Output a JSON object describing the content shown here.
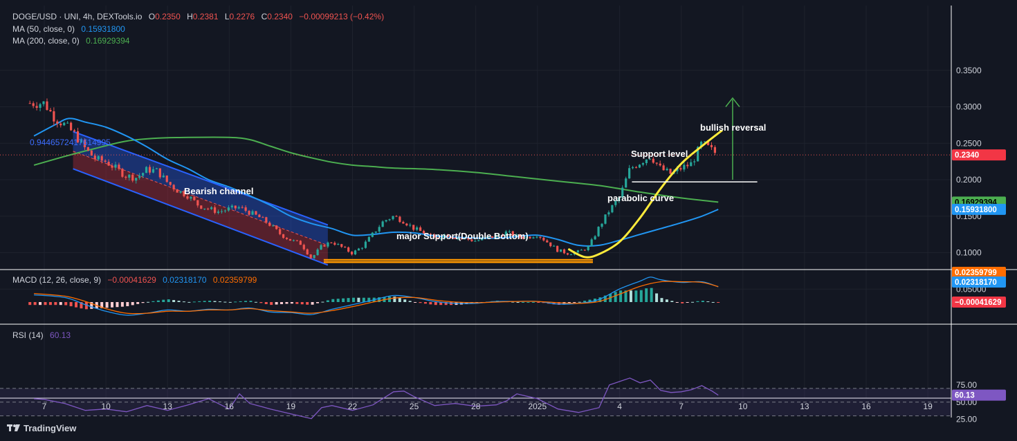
{
  "header": {
    "symbol_line": "DOGE/USD · UNI, 4h, DEXTools.io",
    "o_label": "O",
    "o": "0.2350",
    "h_label": "H",
    "h": "0.2381",
    "l_label": "L",
    "l": "0.2276",
    "c_label": "C",
    "c": "0.2340",
    "change": "−0.00099213 (−0.42%)",
    "ma50_label": "MA (50, close, 0)",
    "ma50_value": "0.15931800",
    "ma200_label": "MA (200, close, 0)",
    "ma200_value": "0.16929394"
  },
  "annotations": {
    "fib": "0.9446572417614995",
    "bearish_channel": "Bearish channel",
    "major_support": "major Support(Double Bottom)",
    "support_level": "Support level",
    "bullish_reversal": "bullish reversal",
    "parabolic_curve": "parabolic curve"
  },
  "price_axis": {
    "ticks": [
      "0.3500",
      "0.3000",
      "0.2500",
      "0.2000",
      "0.1500",
      "0.1000",
      "0.05000"
    ],
    "current": "0.2340",
    "ma200_tag": "0.16929394",
    "ma50_tag": "0.15931800"
  },
  "macd": {
    "label": "MACD (12, 26, close, 9)",
    "hist_value": "−0.00041629",
    "macd_value": "0.02318170",
    "signal_value": "0.02359799",
    "tag_macd": "0.02318170",
    "tag_hist": "−0.00041629",
    "tag_signal": "0.02359799"
  },
  "rsi": {
    "label": "RSI (14)",
    "value": "60.13",
    "ticks": [
      "75.00",
      "50.00",
      "25.00"
    ],
    "tag": "60.13"
  },
  "time_axis": [
    "7",
    "10",
    "13",
    "16",
    "19",
    "22",
    "25",
    "28",
    "2025",
    "4",
    "7",
    "10",
    "13",
    "16",
    "19"
  ],
  "footer": {
    "brand": "TradingView"
  },
  "colors": {
    "background": "#131722",
    "up": "#26a69a",
    "down": "#ef5350",
    "ma50": "#2196f3",
    "ma200": "#4caf50",
    "rsi": "#7e57c2",
    "signal": "#ff6d00",
    "support": "#ff9800",
    "curve": "#ffeb3b",
    "arrow": "#4caf50"
  },
  "chart_data": {
    "type": "candlestick",
    "title": "DOGE/USD · UNI, 4h, DEXTools.io",
    "y_ticks": [
      0.35,
      0.3,
      0.25,
      0.2,
      0.15,
      0.1,
      0.05
    ],
    "last_close": 0.234,
    "ma50_last": 0.159318,
    "ma200_last": 0.16929394,
    "price_path": [
      [
        7,
        0.305
      ],
      [
        7.5,
        0.285
      ],
      [
        8,
        0.275
      ],
      [
        8.5,
        0.262
      ],
      [
        9,
        0.242
      ],
      [
        9.5,
        0.228
      ],
      [
        10,
        0.225
      ],
      [
        10.5,
        0.215
      ],
      [
        11,
        0.205
      ],
      [
        11.5,
        0.203
      ],
      [
        12,
        0.214
      ],
      [
        12.5,
        0.212
      ],
      [
        13,
        0.196
      ],
      [
        13.5,
        0.185
      ],
      [
        14,
        0.178
      ],
      [
        14.5,
        0.165
      ],
      [
        15,
        0.16
      ],
      [
        15.5,
        0.156
      ],
      [
        16,
        0.16
      ],
      [
        16.5,
        0.162
      ],
      [
        17,
        0.155
      ],
      [
        17.5,
        0.148
      ],
      [
        18,
        0.138
      ],
      [
        18.5,
        0.125
      ],
      [
        19,
        0.117
      ],
      [
        19.5,
        0.112
      ],
      [
        20,
        0.092
      ],
      [
        20.5,
        0.109
      ],
      [
        21,
        0.115
      ],
      [
        21.5,
        0.107
      ],
      [
        22,
        0.099
      ],
      [
        22.5,
        0.109
      ],
      [
        23,
        0.126
      ],
      [
        23.5,
        0.143
      ],
      [
        24,
        0.15
      ],
      [
        24.5,
        0.143
      ],
      [
        25,
        0.133
      ],
      [
        25.5,
        0.127
      ],
      [
        26,
        0.119
      ],
      [
        26.5,
        0.125
      ],
      [
        27,
        0.121
      ],
      [
        27.5,
        0.119
      ],
      [
        28,
        0.116
      ],
      [
        28.5,
        0.12
      ],
      [
        29,
        0.123
      ],
      [
        29.5,
        0.128
      ],
      [
        30,
        0.122
      ],
      [
        30.5,
        0.121
      ],
      [
        31,
        0.125
      ],
      [
        31.5,
        0.114
      ],
      [
        32,
        0.103
      ],
      [
        32.5,
        0.099
      ],
      [
        33,
        0.101
      ],
      [
        33.5,
        0.108
      ],
      [
        34,
        0.135
      ],
      [
        34.5,
        0.158
      ],
      [
        35,
        0.176
      ],
      [
        35.5,
        0.215
      ],
      [
        36,
        0.224
      ],
      [
        36.5,
        0.233
      ],
      [
        37,
        0.215
      ],
      [
        37.5,
        0.208
      ],
      [
        38,
        0.216
      ],
      [
        38.5,
        0.222
      ],
      [
        39,
        0.25
      ],
      [
        39.5,
        0.24
      ],
      [
        39.8,
        0.234
      ]
    ],
    "ma50_path": [
      [
        6.5,
        0.26
      ],
      [
        7.5,
        0.275
      ],
      [
        8.2,
        0.284
      ],
      [
        9,
        0.279
      ],
      [
        10,
        0.272
      ],
      [
        11,
        0.26
      ],
      [
        12,
        0.245
      ],
      [
        13,
        0.228
      ],
      [
        14,
        0.215
      ],
      [
        15,
        0.2
      ],
      [
        16,
        0.19
      ],
      [
        17,
        0.178
      ],
      [
        18,
        0.165
      ],
      [
        19,
        0.15
      ],
      [
        20,
        0.14
      ],
      [
        21,
        0.133
      ],
      [
        22,
        0.124
      ],
      [
        23,
        0.125
      ],
      [
        24,
        0.128
      ],
      [
        25,
        0.127
      ],
      [
        26,
        0.123
      ],
      [
        27,
        0.121
      ],
      [
        28,
        0.12
      ],
      [
        29,
        0.12
      ],
      [
        30,
        0.122
      ],
      [
        31,
        0.124
      ],
      [
        32,
        0.118
      ],
      [
        33,
        0.11
      ],
      [
        34,
        0.11
      ],
      [
        35,
        0.117
      ],
      [
        36,
        0.125
      ],
      [
        37,
        0.133
      ],
      [
        38,
        0.141
      ],
      [
        39,
        0.15
      ],
      [
        39.8,
        0.1593
      ]
    ],
    "ma200_path": [
      [
        6.5,
        0.22
      ],
      [
        8,
        0.232
      ],
      [
        9.5,
        0.243
      ],
      [
        11,
        0.253
      ],
      [
        12.5,
        0.257
      ],
      [
        14,
        0.258
      ],
      [
        16,
        0.258
      ],
      [
        17,
        0.255
      ],
      [
        18,
        0.246
      ],
      [
        19,
        0.237
      ],
      [
        20,
        0.23
      ],
      [
        21,
        0.224
      ],
      [
        22,
        0.22
      ],
      [
        23,
        0.218
      ],
      [
        24,
        0.216
      ],
      [
        26,
        0.214
      ],
      [
        28,
        0.21
      ],
      [
        30,
        0.204
      ],
      [
        32,
        0.198
      ],
      [
        34,
        0.192
      ],
      [
        36,
        0.183
      ],
      [
        38,
        0.175
      ],
      [
        39.8,
        0.1693
      ]
    ],
    "channel": {
      "upper": [
        [
          8.4,
          0.266
        ],
        [
          20.8,
          0.138
        ]
      ],
      "lower": [
        [
          8.4,
          0.215
        ],
        [
          20.8,
          0.083
        ]
      ],
      "mid": [
        [
          8.4,
          0.239
        ],
        [
          20.8,
          0.11
        ]
      ]
    },
    "support_band": [
      0.09,
      0.087
    ],
    "support_level": 0.197,
    "curve_path": [
      [
        32.5,
        0.105
      ],
      [
        33.3,
        0.094
      ],
      [
        34.0,
        0.098
      ],
      [
        35.0,
        0.115
      ],
      [
        36.0,
        0.148
      ],
      [
        37.0,
        0.188
      ],
      [
        38.0,
        0.222
      ],
      [
        39.0,
        0.246
      ],
      [
        40.0,
        0.268
      ]
    ],
    "macd_series": {
      "macd": [
        [
          6.5,
          0.011
        ],
        [
          8,
          0.007
        ],
        [
          9,
          -0.004
        ],
        [
          10,
          -0.014
        ],
        [
          11,
          -0.02
        ],
        [
          12,
          -0.017
        ],
        [
          13,
          -0.012
        ],
        [
          14,
          -0.014
        ],
        [
          15,
          -0.011
        ],
        [
          16,
          -0.012
        ],
        [
          17,
          -0.009
        ],
        [
          18,
          -0.015
        ],
        [
          19,
          -0.016
        ],
        [
          20,
          -0.019
        ],
        [
          21,
          -0.011
        ],
        [
          22,
          -0.004
        ],
        [
          23,
          0.003
        ],
        [
          24,
          0.01
        ],
        [
          25,
          0.007
        ],
        [
          26,
          0.001
        ],
        [
          27,
          -0.002
        ],
        [
          28,
          -0.002
        ],
        [
          29,
          0.001
        ],
        [
          30,
          0.001
        ],
        [
          31,
          0.001
        ],
        [
          32,
          -0.003
        ],
        [
          33,
          -0.002
        ],
        [
          34,
          0.004
        ],
        [
          35,
          0.02
        ],
        [
          36,
          0.032
        ],
        [
          36.5,
          0.038
        ],
        [
          37,
          0.034
        ],
        [
          38,
          0.03
        ],
        [
          39,
          0.031
        ],
        [
          39.8,
          0.02318
        ]
      ],
      "signal": [
        [
          6.5,
          0.013
        ],
        [
          8,
          0.009
        ],
        [
          9,
          0.001
        ],
        [
          10,
          -0.01
        ],
        [
          11,
          -0.017
        ],
        [
          12,
          -0.017
        ],
        [
          13,
          -0.014
        ],
        [
          14,
          -0.014
        ],
        [
          15,
          -0.012
        ],
        [
          16,
          -0.012
        ],
        [
          17,
          -0.01
        ],
        [
          18,
          -0.013
        ],
        [
          19,
          -0.015
        ],
        [
          20,
          -0.017
        ],
        [
          21,
          -0.013
        ],
        [
          22,
          -0.007
        ],
        [
          23,
          0.0
        ],
        [
          24,
          0.006
        ],
        [
          25,
          0.007
        ],
        [
          26,
          0.003
        ],
        [
          27,
          0.0
        ],
        [
          28,
          -0.001
        ],
        [
          29,
          0.0
        ],
        [
          30,
          0.001
        ],
        [
          31,
          0.001
        ],
        [
          32,
          -0.001
        ],
        [
          33,
          -0.002
        ],
        [
          34,
          0.001
        ],
        [
          35,
          0.012
        ],
        [
          36,
          0.024
        ],
        [
          37,
          0.031
        ],
        [
          38,
          0.031
        ],
        [
          39,
          0.03
        ],
        [
          39.8,
          0.0236
        ]
      ]
    },
    "rsi_series": [
      [
        6.5,
        55
      ],
      [
        7,
        54
      ],
      [
        8,
        48
      ],
      [
        9,
        38
      ],
      [
        10,
        40
      ],
      [
        11,
        36
      ],
      [
        12,
        45
      ],
      [
        13,
        38
      ],
      [
        14,
        46
      ],
      [
        15,
        55
      ],
      [
        16,
        40
      ],
      [
        16.5,
        62
      ],
      [
        17,
        48
      ],
      [
        18,
        40
      ],
      [
        19,
        33
      ],
      [
        20,
        26
      ],
      [
        20.5,
        42
      ],
      [
        21,
        45
      ],
      [
        22,
        38
      ],
      [
        23,
        46
      ],
      [
        24,
        65
      ],
      [
        24.5,
        66
      ],
      [
        25,
        58
      ],
      [
        26,
        45
      ],
      [
        27,
        48
      ],
      [
        28,
        44
      ],
      [
        29,
        46
      ],
      [
        29.5,
        52
      ],
      [
        30,
        62
      ],
      [
        31,
        55
      ],
      [
        32,
        40
      ],
      [
        33,
        35
      ],
      [
        34,
        42
      ],
      [
        34.5,
        75
      ],
      [
        35,
        80
      ],
      [
        35.5,
        85
      ],
      [
        36,
        78
      ],
      [
        36.5,
        82
      ],
      [
        37,
        67
      ],
      [
        37.5,
        64
      ],
      [
        38,
        65
      ],
      [
        38.5,
        68
      ],
      [
        39,
        74
      ],
      [
        39.5,
        66
      ],
      [
        39.8,
        60.13
      ]
    ],
    "rsi_levels": [
      70,
      50,
      30
    ],
    "rsi_ticks": [
      75,
      50,
      25
    ]
  }
}
